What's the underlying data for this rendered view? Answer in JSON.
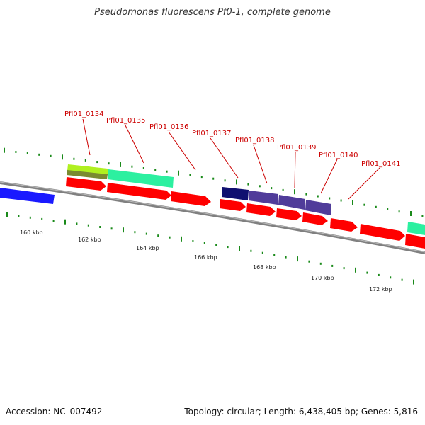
{
  "header": {
    "title": "Pseudomonas fluorescens Pf0-1, complete genome"
  },
  "footer": {
    "accession": "Accession: NC_007492",
    "summary": "Topology: circular; Length: 6,438,405 bp; Genes: 5,816"
  },
  "map": {
    "backbone_color": "#808080",
    "tick_color": "#1a8a1a",
    "gene_label_color": "#cc0000",
    "axis_labels": [
      "160 kbp",
      "162 kbp",
      "164 kbp",
      "166 kbp",
      "168 kbp",
      "170 kbp",
      "172 kbp"
    ],
    "gene_labels": [
      "Pfl01_0134",
      "Pfl01_0135",
      "Pfl01_0136",
      "Pfl01_0137",
      "Pfl01_0138",
      "Pfl01_0139",
      "Pfl01_0140",
      "Pfl01_0141"
    ],
    "feature_colors": {
      "cds": "#ff0000",
      "cog_blue": "#1a1aff",
      "cog_navy": "#101070",
      "cog_purple": "#503c9a",
      "cog_green": "#2cf0a0",
      "cog_yellowgreen": "#b0f020",
      "cog_olive": "#7a8a30"
    }
  }
}
